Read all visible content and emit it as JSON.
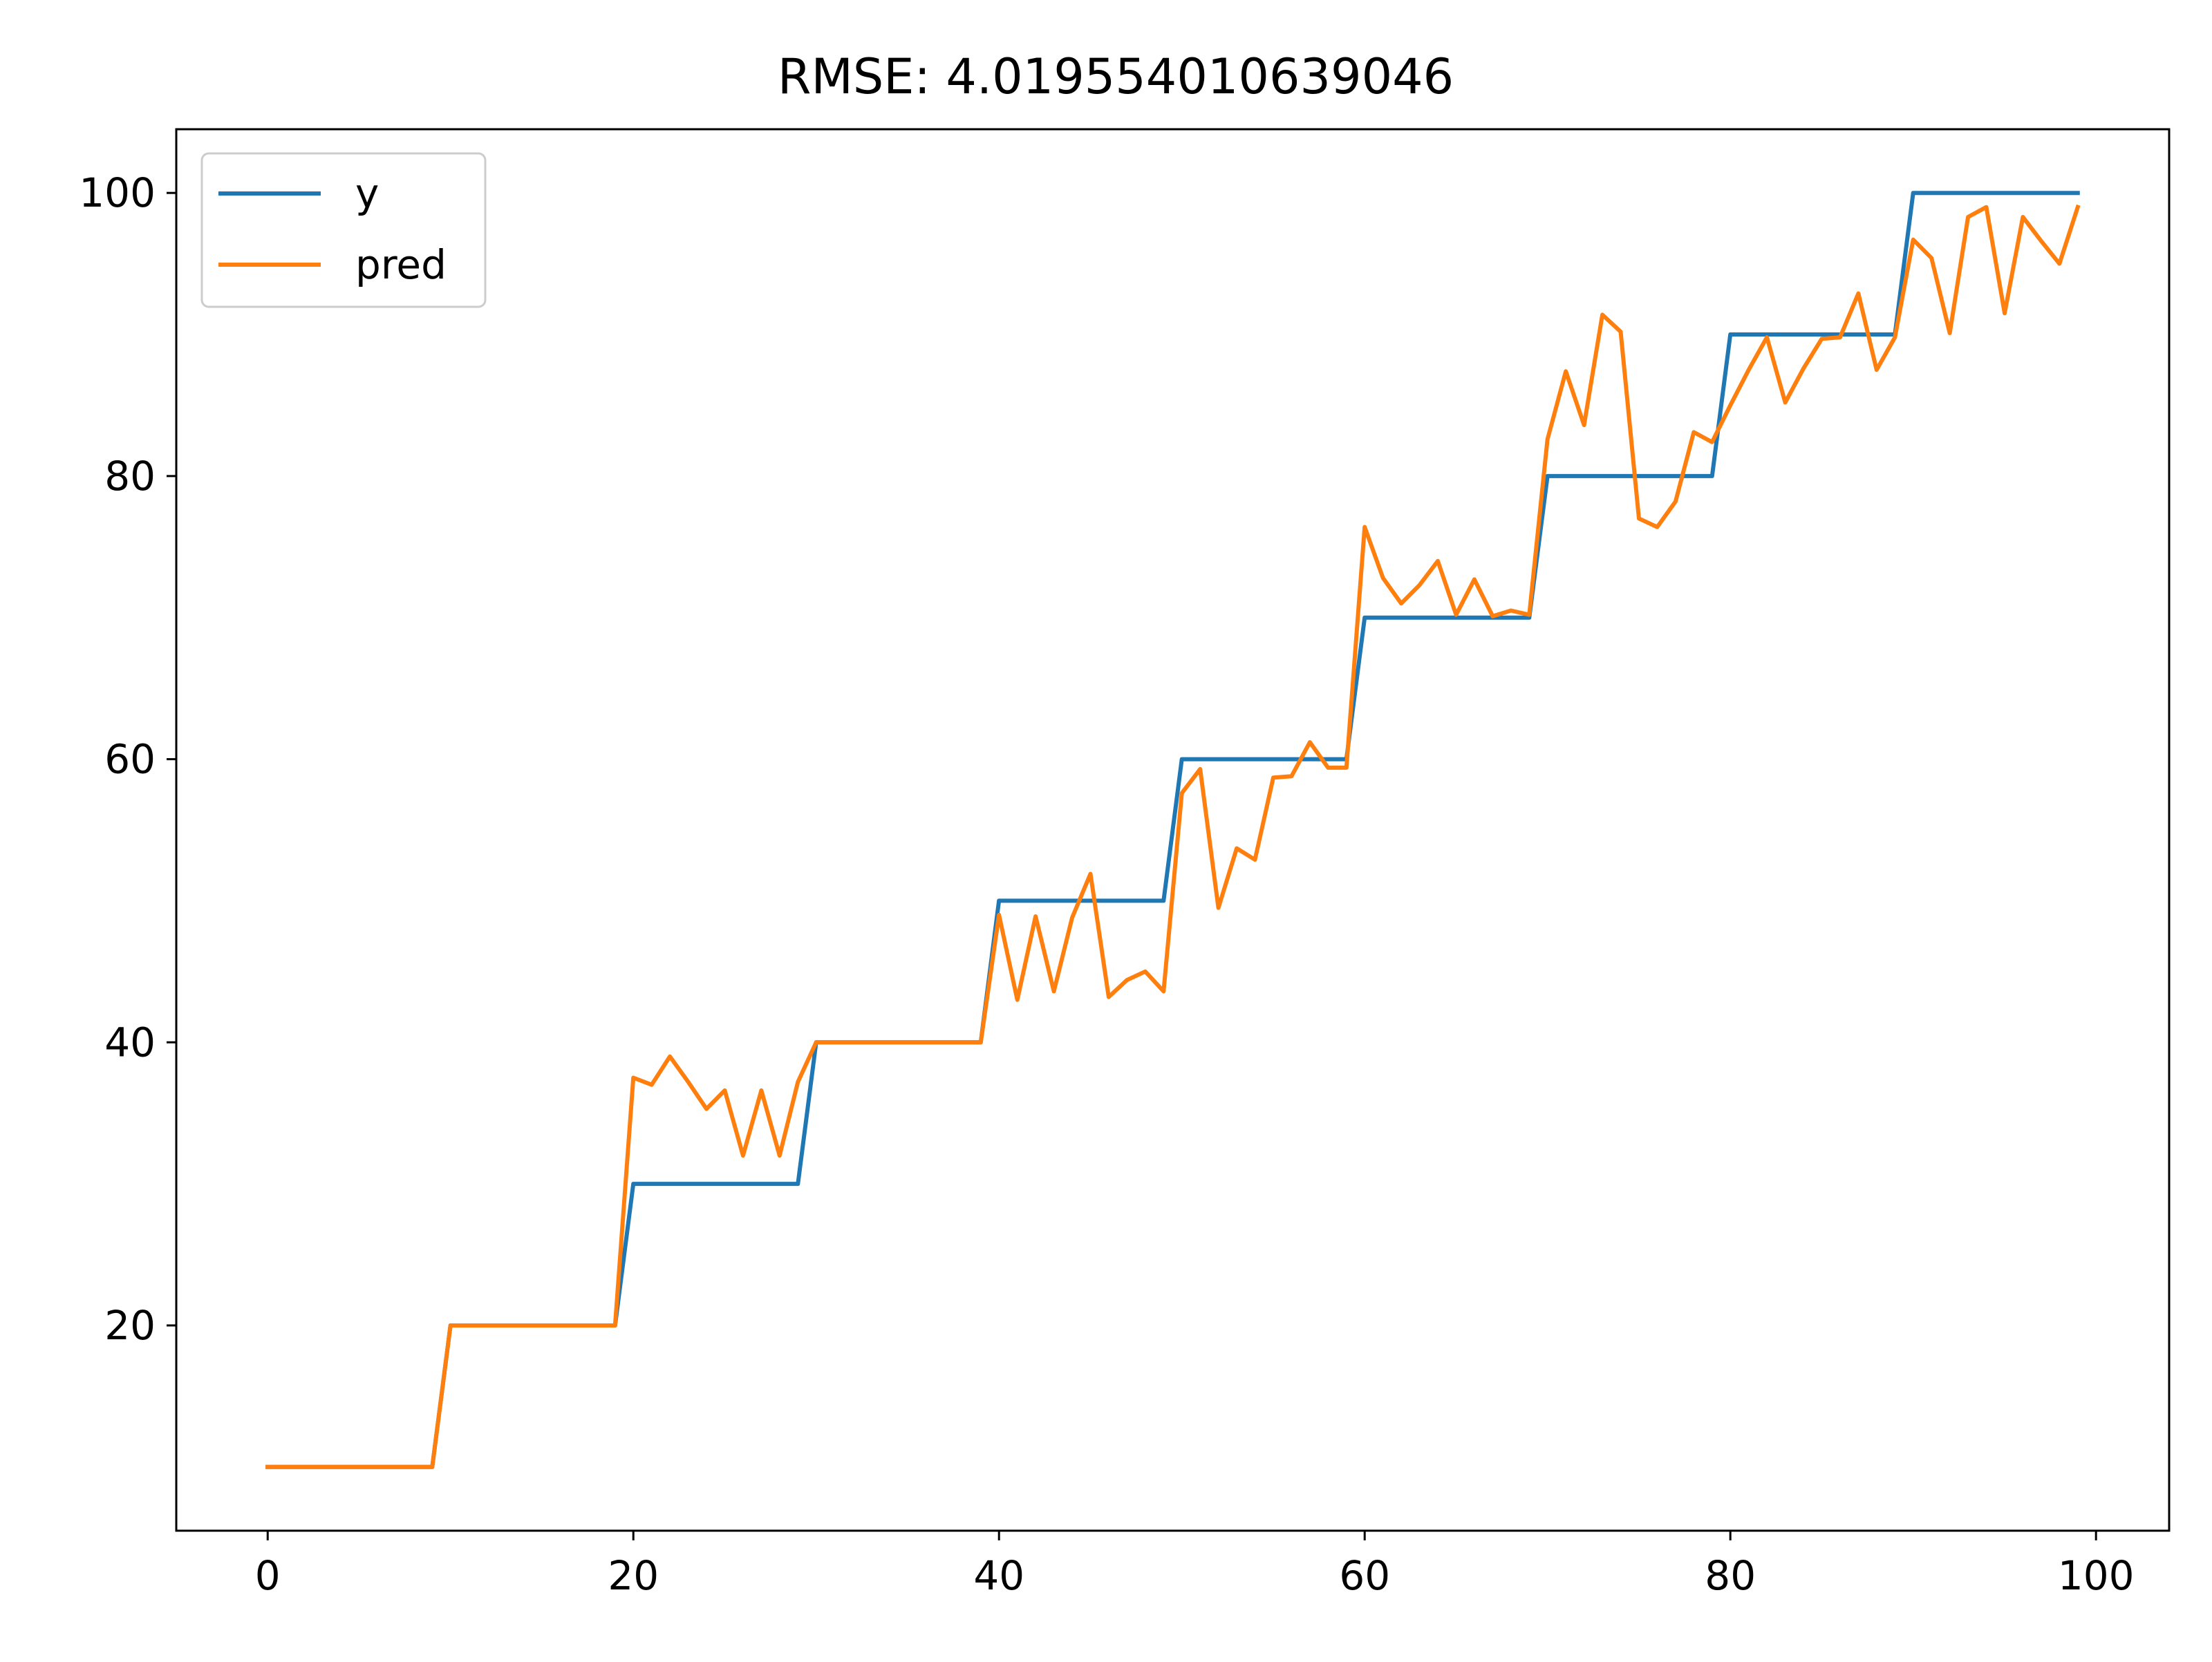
{
  "chart_data": {
    "type": "line",
    "title": "RMSE: 4.019554010639046",
    "xlabel": "",
    "ylabel": "",
    "xlim": [
      -5,
      104
    ],
    "ylim": [
      5.5,
      104.5
    ],
    "xticks": [
      0,
      20,
      40,
      60,
      80,
      100
    ],
    "yticks": [
      20,
      40,
      60,
      80,
      100
    ],
    "grid": false,
    "legend_position": "top-left",
    "x": [
      0,
      1,
      2,
      3,
      4,
      5,
      6,
      7,
      8,
      9,
      10,
      11,
      12,
      13,
      14,
      15,
      16,
      17,
      18,
      19,
      20,
      21,
      22,
      23,
      24,
      25,
      26,
      27,
      28,
      29,
      30,
      31,
      32,
      33,
      34,
      35,
      36,
      37,
      38,
      39,
      40,
      41,
      42,
      43,
      44,
      45,
      46,
      47,
      48,
      49,
      50,
      51,
      52,
      53,
      54,
      55,
      56,
      57,
      58,
      59,
      60,
      61,
      62,
      63,
      64,
      65,
      66,
      67,
      68,
      69,
      70,
      71,
      72,
      73,
      74,
      75,
      76,
      77,
      78,
      79,
      80,
      81,
      82,
      83,
      84,
      85,
      86,
      87,
      88,
      89,
      90,
      91,
      92,
      93,
      94,
      95,
      96,
      97,
      98,
      99
    ],
    "series": [
      {
        "name": "y",
        "color": "#1f77b4",
        "values": [
          10,
          10,
          10,
          10,
          10,
          10,
          10,
          10,
          10,
          10,
          20,
          20,
          20,
          20,
          20,
          20,
          20,
          20,
          20,
          20,
          30,
          30,
          30,
          30,
          30,
          30,
          30,
          30,
          30,
          30,
          40,
          40,
          40,
          40,
          40,
          40,
          40,
          40,
          40,
          40,
          50,
          50,
          50,
          50,
          50,
          50,
          50,
          50,
          50,
          50,
          60,
          60,
          60,
          60,
          60,
          60,
          60,
          60,
          60,
          60,
          70,
          70,
          70,
          70,
          70,
          70,
          70,
          70,
          70,
          70,
          80,
          80,
          80,
          80,
          80,
          80,
          80,
          80,
          80,
          80,
          90,
          90,
          90,
          90,
          90,
          90,
          90,
          90,
          90,
          90,
          100,
          100,
          100,
          100,
          100,
          100,
          100,
          100,
          100,
          100
        ]
      },
      {
        "name": "pred",
        "color": "#ff7f0e",
        "values": [
          10,
          10,
          10,
          10,
          10,
          10,
          10,
          10,
          10,
          10,
          20,
          20,
          20,
          20,
          20,
          20,
          20,
          20,
          20,
          20,
          37.5,
          37,
          39,
          37.2,
          35.3,
          36.6,
          32,
          36.6,
          32,
          37.2,
          40,
          40,
          40,
          40,
          40,
          40,
          40,
          40,
          40,
          40,
          49,
          43,
          48.9,
          43.6,
          48.8,
          51.9,
          43.2,
          44.4,
          45,
          43.6,
          57.6,
          59.3,
          49.5,
          53.7,
          52.9,
          58.7,
          58.8,
          61.2,
          59.4,
          59.4,
          76.4,
          72.8,
          71,
          72.3,
          74,
          70.2,
          72.7,
          70.1,
          70.5,
          70.2,
          82.6,
          87.4,
          83.6,
          91.4,
          90.2,
          77,
          76.4,
          78.2,
          83.1,
          82.4,
          85,
          87.5,
          89.8,
          85.2,
          87.6,
          89.7,
          89.8,
          92.9,
          87.5,
          89.8,
          96.7,
          95.4,
          90.1,
          98.3,
          99,
          91.5,
          98.3,
          96.6,
          95,
          99
        ]
      }
    ]
  }
}
